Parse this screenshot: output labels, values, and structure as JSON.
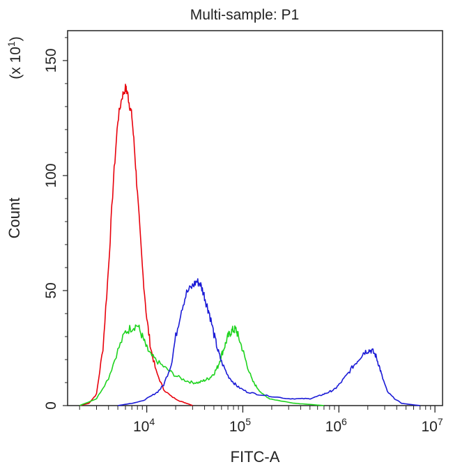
{
  "chart_data": {
    "type": "line",
    "title": "Multi-sample: P1",
    "xlabel": "FITC-A",
    "ylabel": "Count",
    "y_multiplier": {
      "prefix": "(x 10",
      "exponent": "1",
      "suffix": ")"
    },
    "x_scale": "log",
    "xlim": [
      1500,
      12000000
    ],
    "ylim": [
      0,
      163
    ],
    "x_ticks": [
      {
        "value": 10000,
        "base": "10",
        "exp": "4"
      },
      {
        "value": 100000,
        "base": "10",
        "exp": "5"
      },
      {
        "value": 1000000,
        "base": "10",
        "exp": "6"
      },
      {
        "value": 10000000,
        "base": "10",
        "exp": "7"
      }
    ],
    "y_ticks": [
      {
        "value": 0,
        "label": "0"
      },
      {
        "value": 50,
        "label": "50"
      },
      {
        "value": 100,
        "label": "100"
      },
      {
        "value": 150,
        "label": "150"
      }
    ],
    "grid": false,
    "legend": "none",
    "series": [
      {
        "color": "#e8000b",
        "x": [
          2000,
          2500,
          3000,
          3500,
          4000,
          4500,
          5000,
          5500,
          6000,
          6300,
          6600,
          7000,
          7500,
          8000,
          9000,
          10000,
          11000,
          12500,
          15000,
          18000,
          22000,
          26000,
          30000
        ],
        "y": [
          0,
          1,
          5,
          25,
          60,
          98,
          124,
          134,
          138,
          136,
          131,
          126,
          110,
          92,
          60,
          38,
          25,
          15,
          7,
          4,
          2,
          1,
          0
        ]
      },
      {
        "color": "#1ed31e",
        "x": [
          2000,
          3000,
          4000,
          5000,
          6000,
          7000,
          8000,
          9000,
          10000,
          11000,
          13000,
          16000,
          20000,
          25000,
          30000,
          35000,
          40000,
          45000,
          50000,
          55000,
          60000,
          65000,
          70000,
          75000,
          80000,
          85000,
          90000,
          100000,
          110000,
          125000,
          140000,
          160000,
          190000,
          250000,
          350000,
          500000,
          700000
        ],
        "y": [
          0,
          3,
          12,
          24,
          32,
          34,
          35,
          30,
          25,
          22,
          19,
          16,
          13,
          11,
          10,
          10,
          11,
          12,
          14,
          17,
          22,
          26,
          30,
          32,
          33,
          33,
          30,
          24,
          18,
          11,
          8,
          5,
          3,
          2,
          1,
          0.5,
          0
        ]
      },
      {
        "color": "#1a1ad6",
        "x": [
          5000,
          7000,
          9000,
          11000,
          13000,
          15000,
          18000,
          20000,
          23000,
          26000,
          30000,
          33000,
          36000,
          39000,
          42000,
          45000,
          50000,
          55000,
          60000,
          70000,
          80000,
          90000,
          110000,
          140000,
          200000,
          300000,
          400000,
          500000,
          600000,
          700000,
          800000,
          900000,
          1000000,
          1200000,
          1400000,
          1600000,
          1800000,
          2000000,
          2200000,
          2400000,
          2600000,
          2800000,
          3200000,
          3800000,
          4500000,
          5500000,
          7000000
        ],
        "y": [
          0,
          1,
          2,
          4,
          6,
          9,
          18,
          30,
          42,
          49,
          52,
          54,
          53,
          49,
          44,
          40,
          31,
          24,
          19,
          13,
          10,
          8,
          6,
          5,
          4,
          3,
          3,
          3,
          4,
          5,
          6,
          7,
          9,
          13,
          17,
          20,
          23,
          24,
          24,
          22,
          18,
          13,
          6,
          3,
          1,
          0.5,
          0
        ]
      }
    ]
  }
}
